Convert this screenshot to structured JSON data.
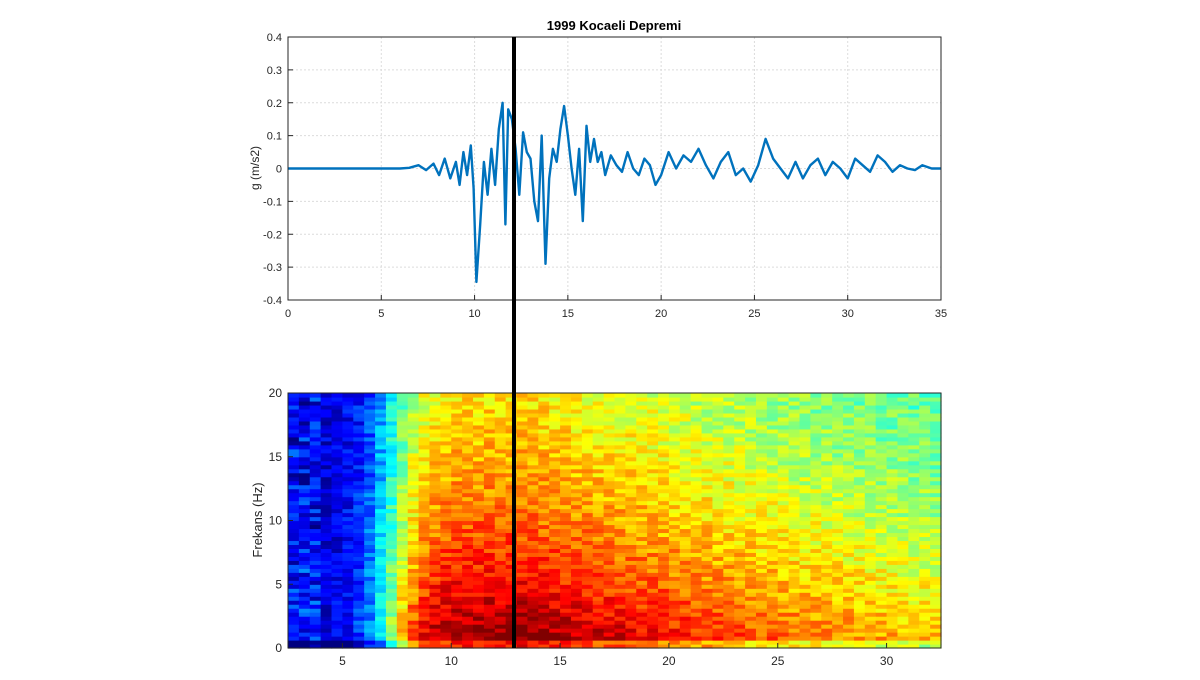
{
  "chart_data": [
    {
      "type": "line",
      "title": "1999 Kocaeli Depremi",
      "ylabel": "g (m/s2)",
      "xlim": [
        0,
        35
      ],
      "ylim": [
        -0.4,
        0.4
      ],
      "x_ticks": [
        "0",
        "5",
        "10",
        "15",
        "20",
        "25",
        "30",
        "35"
      ],
      "y_ticks": [
        "-0.4",
        "-0.3",
        "-0.2",
        "-0.1",
        "0",
        "0.1",
        "0.2",
        "0.3",
        "0.4"
      ],
      "grid": true,
      "line_color": "#0072bd",
      "series": [
        {
          "x": [
            0,
            1,
            2,
            3,
            4,
            5,
            6,
            6.5,
            7,
            7.4,
            7.8,
            8.1,
            8.4,
            8.7,
            9.0,
            9.2,
            9.4,
            9.6,
            9.8,
            9.95,
            10.1,
            10.3,
            10.5,
            10.7,
            10.9,
            11.1,
            11.3,
            11.5,
            11.65,
            11.8,
            12.0,
            12.2,
            12.4,
            12.6,
            12.8,
            13.0,
            13.2,
            13.4,
            13.6,
            13.8,
            14.0,
            14.2,
            14.4,
            14.6,
            14.8,
            15.0,
            15.2,
            15.4,
            15.6,
            15.8,
            16.0,
            16.2,
            16.4,
            16.6,
            16.8,
            17.0,
            17.3,
            17.6,
            17.9,
            18.2,
            18.5,
            18.8,
            19.1,
            19.4,
            19.7,
            20.0,
            20.4,
            20.8,
            21.2,
            21.6,
            22.0,
            22.4,
            22.8,
            23.2,
            23.6,
            24.0,
            24.4,
            24.8,
            25.2,
            25.6,
            26.0,
            26.4,
            26.8,
            27.2,
            27.6,
            28.0,
            28.4,
            28.8,
            29.2,
            29.6,
            30.0,
            30.4,
            30.8,
            31.2,
            31.6,
            32.0,
            32.4,
            32.8,
            33.2,
            33.6,
            34.0,
            34.5,
            35.0
          ],
          "y": [
            0,
            0,
            0,
            0,
            0,
            0,
            0,
            0.002,
            0.01,
            -0.005,
            0.015,
            -0.02,
            0.03,
            -0.03,
            0.02,
            -0.05,
            0.05,
            -0.02,
            0.07,
            -0.06,
            -0.345,
            -0.17,
            0.02,
            -0.08,
            0.06,
            -0.05,
            0.12,
            0.2,
            -0.17,
            0.18,
            0.15,
            0.06,
            -0.08,
            0.11,
            0.05,
            0.03,
            -0.1,
            -0.16,
            0.1,
            -0.29,
            -0.03,
            0.06,
            0.02,
            0.12,
            0.19,
            0.1,
            0.0,
            -0.08,
            0.06,
            -0.16,
            0.13,
            0.02,
            0.09,
            0.02,
            0.05,
            -0.02,
            0.04,
            0.01,
            -0.01,
            0.05,
            0.0,
            -0.02,
            0.03,
            0.01,
            -0.05,
            -0.02,
            0.05,
            0.0,
            0.04,
            0.02,
            0.06,
            0.01,
            -0.03,
            0.02,
            0.05,
            -0.02,
            0.0,
            -0.04,
            0.01,
            0.09,
            0.03,
            0.0,
            -0.03,
            0.02,
            -0.03,
            0.01,
            0.03,
            -0.02,
            0.02,
            0.0,
            -0.03,
            0.03,
            0.01,
            -0.01,
            0.04,
            0.02,
            -0.01,
            0.01,
            0.0,
            -0.005,
            0.01,
            0.0,
            0.0
          ]
        }
      ],
      "cursor_x": 12.2,
      "cursor_color": "#000000"
    },
    {
      "type": "heatmap",
      "ylabel": "Frekans (Hz)",
      "xlim": [
        2.5,
        32.5
      ],
      "ylim": [
        0,
        20
      ],
      "x_ticks": [
        "5",
        "10",
        "15",
        "20",
        "25",
        "30"
      ],
      "y_ticks": [
        "0",
        "5",
        "10",
        "15",
        "20"
      ],
      "colormap": "jet",
      "x_bins": 60,
      "y_bins": 64,
      "seed": 7,
      "energy_peak_time": 13.5,
      "cursor_x": 12.8,
      "cursor_color": "#000000"
    }
  ]
}
